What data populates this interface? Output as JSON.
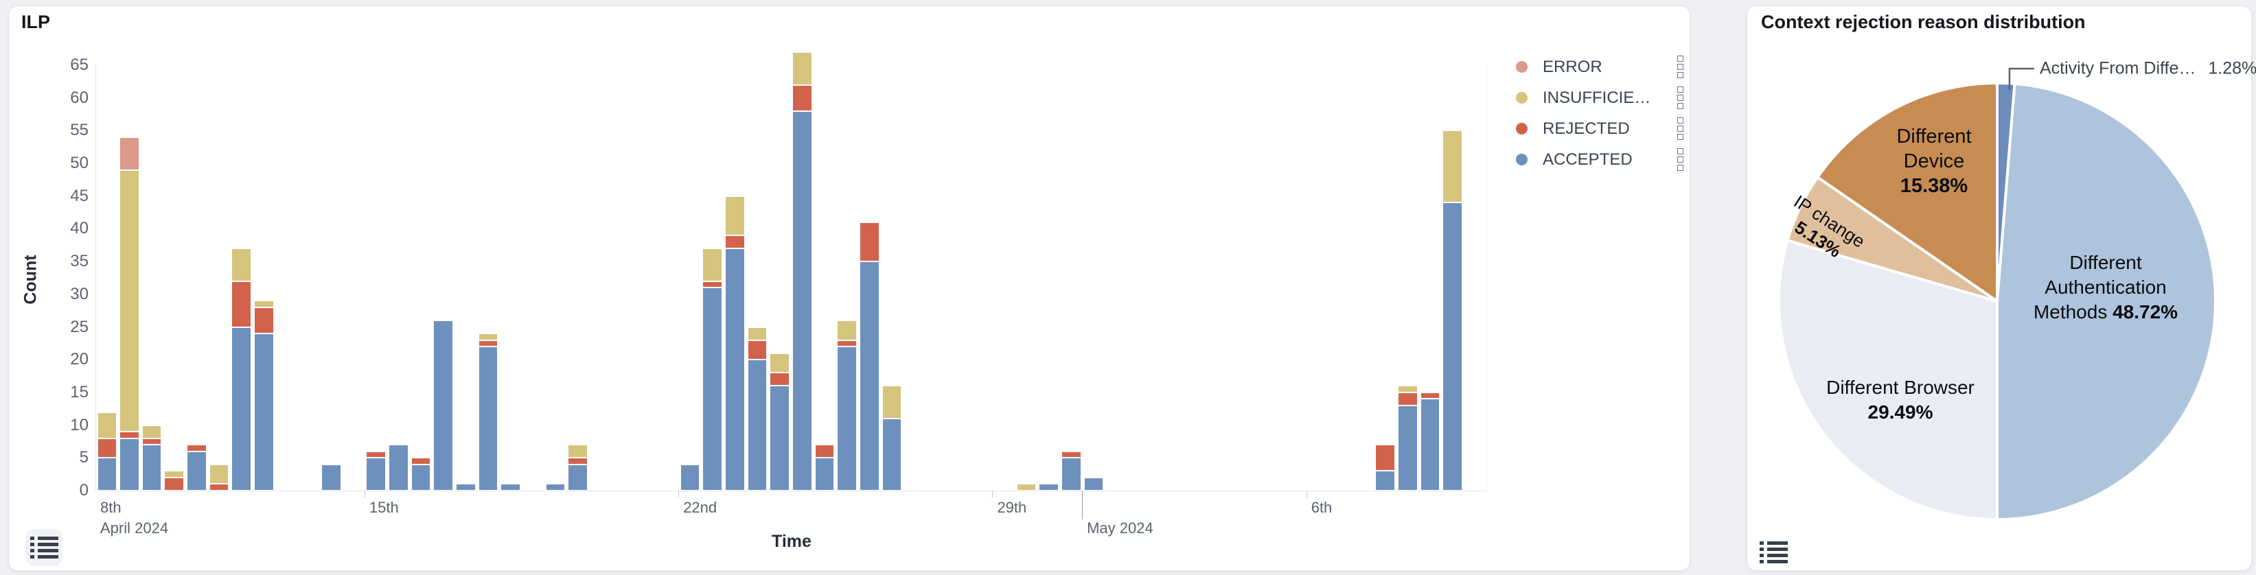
{
  "left_panel": {
    "title": "ILP",
    "legend": [
      {
        "label": "ERROR",
        "color": "#de988c"
      },
      {
        "label": "INSUFFICIE…",
        "color": "#d6c37c"
      },
      {
        "label": "REJECTED",
        "color": "#d2624c"
      },
      {
        "label": "ACCEPTED",
        "color": "#6e90bd"
      }
    ],
    "table_toggle_icon": "list-icon"
  },
  "right_panel": {
    "title": "Context rejection reason distribution",
    "table_toggle_icon": "list-icon"
  },
  "chart_data": [
    {
      "type": "bar",
      "stacked": true,
      "title": "ILP",
      "xlabel": "Time",
      "ylabel": "Count",
      "ylim": [
        0,
        65
      ],
      "y_ticks": [
        0,
        5,
        10,
        15,
        20,
        25,
        30,
        35,
        40,
        45,
        50,
        55,
        60,
        65
      ],
      "grid": false,
      "legend_position": "right",
      "slots": 62,
      "slot_unit": "half-day",
      "x_ticks": [
        {
          "slot": 0,
          "label": "8th",
          "sub": "April 2024"
        },
        {
          "slot": 12,
          "label": "15th"
        },
        {
          "slot": 26,
          "label": "22nd"
        },
        {
          "slot": 40,
          "label": "29th"
        },
        {
          "slot": 44,
          "label": "May 2024",
          "long": true
        },
        {
          "slot": 54,
          "label": "6th"
        }
      ],
      "stack": [
        {
          "key": "accepted",
          "name": "ACCEPTED",
          "color": "#6e90bd"
        },
        {
          "key": "rejected",
          "name": "REJECTED",
          "color": "#d2624c"
        },
        {
          "key": "insufficient",
          "name": "INSUFFICIE…",
          "color": "#d6c37c"
        },
        {
          "key": "error",
          "name": "ERROR",
          "color": "#de988c"
        }
      ],
      "bars": [
        {
          "slot": 0,
          "accepted": 5,
          "rejected": 3,
          "insufficient": 4,
          "error": 0
        },
        {
          "slot": 1,
          "accepted": 8,
          "rejected": 1,
          "insufficient": 40,
          "error": 5
        },
        {
          "slot": 2,
          "accepted": 7,
          "rejected": 1,
          "insufficient": 2,
          "error": 0
        },
        {
          "slot": 3,
          "accepted": 0,
          "rejected": 2,
          "insufficient": 1,
          "error": 0
        },
        {
          "slot": 4,
          "accepted": 6,
          "rejected": 1,
          "insufficient": 0,
          "error": 0
        },
        {
          "slot": 5,
          "accepted": 0,
          "rejected": 1,
          "insufficient": 3,
          "error": 0
        },
        {
          "slot": 6,
          "accepted": 25,
          "rejected": 7,
          "insufficient": 5,
          "error": 0
        },
        {
          "slot": 7,
          "accepted": 24,
          "rejected": 4,
          "insufficient": 1,
          "error": 0
        },
        {
          "slot": 10,
          "accepted": 4
        },
        {
          "slot": 12,
          "accepted": 5,
          "rejected": 1
        },
        {
          "slot": 13,
          "accepted": 7
        },
        {
          "slot": 14,
          "accepted": 4,
          "rejected": 1
        },
        {
          "slot": 15,
          "accepted": 26
        },
        {
          "slot": 16,
          "accepted": 1
        },
        {
          "slot": 17,
          "accepted": 22,
          "rejected": 1,
          "insufficient": 1
        },
        {
          "slot": 18,
          "accepted": 1
        },
        {
          "slot": 20,
          "accepted": 1
        },
        {
          "slot": 21,
          "accepted": 4,
          "rejected": 1,
          "insufficient": 2
        },
        {
          "slot": 26,
          "accepted": 4
        },
        {
          "slot": 27,
          "accepted": 31,
          "rejected": 1,
          "insufficient": 5
        },
        {
          "slot": 28,
          "accepted": 37,
          "rejected": 2,
          "insufficient": 6
        },
        {
          "slot": 29,
          "accepted": 20,
          "rejected": 3,
          "insufficient": 2
        },
        {
          "slot": 30,
          "accepted": 16,
          "rejected": 2,
          "insufficient": 3
        },
        {
          "slot": 31,
          "accepted": 58,
          "rejected": 4,
          "insufficient": 5
        },
        {
          "slot": 32,
          "accepted": 5,
          "rejected": 2
        },
        {
          "slot": 33,
          "accepted": 22,
          "rejected": 1,
          "insufficient": 3
        },
        {
          "slot": 34,
          "accepted": 35,
          "rejected": 6
        },
        {
          "slot": 35,
          "accepted": 11,
          "insufficient": 5
        },
        {
          "slot": 41,
          "insufficient": 1
        },
        {
          "slot": 42,
          "accepted": 1
        },
        {
          "slot": 43,
          "accepted": 5,
          "rejected": 1
        },
        {
          "slot": 44,
          "accepted": 2
        },
        {
          "slot": 57,
          "accepted": 3,
          "rejected": 4
        },
        {
          "slot": 58,
          "accepted": 13,
          "rejected": 2,
          "insufficient": 1
        },
        {
          "slot": 59,
          "accepted": 14,
          "rejected": 1
        },
        {
          "slot": 60,
          "accepted": 44,
          "insufficient": 11
        }
      ]
    },
    {
      "type": "pie",
      "title": "Context rejection reason distribution",
      "start_angle_deg": 0,
      "direction": "clockwise",
      "slices": [
        {
          "label": "Activity From Diffe…",
          "pct": 1.28,
          "pct_text": "1.28%",
          "color": "#6d8cba",
          "label_style": "callout"
        },
        {
          "label": "Different Authentication Methods",
          "lines": [
            "Different",
            "Authentication",
            "Methods"
          ],
          "pct": 48.72,
          "pct_text": "48.72%",
          "color": "#aec3dc"
        },
        {
          "label": "Different Browser",
          "pct": 29.49,
          "pct_text": "29.49%",
          "color": "#e9edf3"
        },
        {
          "label": "IP change",
          "pct": 5.13,
          "pct_text": "5.13%",
          "color": "#e0c09c"
        },
        {
          "label": "Different Device",
          "lines": [
            "Different",
            "Device"
          ],
          "pct": 15.38,
          "pct_text": "15.38%",
          "color": "#c78c52"
        }
      ]
    }
  ]
}
